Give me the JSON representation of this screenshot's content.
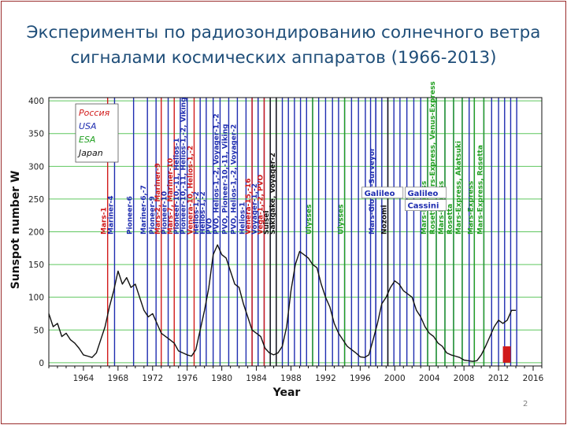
{
  "slide": {
    "title_line1": "Эксперименты по радиозондированию солнечного ветра",
    "title_line2": "сигналами космических аппаратов (1966-2013)",
    "page_number": "2"
  },
  "colors": {
    "ussr": "#d11a1a",
    "usa": "#1f2db0",
    "esa": "#22a022",
    "japan": "#111111",
    "grid": "#5fc75f",
    "title": "#1f4e79"
  },
  "chart_data": {
    "type": "line",
    "title": "",
    "xlabel": "Year",
    "ylabel": "Sunspot number W",
    "xlim": [
      1960,
      2017
    ],
    "ylim": [
      -5,
      405
    ],
    "xticks": [
      1964,
      1968,
      1972,
      1976,
      1980,
      1984,
      1988,
      1992,
      1996,
      2000,
      2004,
      2008,
      2012,
      2016
    ],
    "yticks": [
      0,
      50,
      100,
      150,
      200,
      250,
      300,
      350,
      400
    ],
    "grid": "horizontal",
    "legend": {
      "position": "top-left",
      "entries": [
        {
          "label": "Россия",
          "color_key": "ussr"
        },
        {
          "label": "USA",
          "color_key": "usa"
        },
        {
          "label": "ESA",
          "color_key": "esa"
        },
        {
          "label": "Japan",
          "color_key": "japan"
        }
      ]
    },
    "series": [
      {
        "x": [
          1960.0,
          1960.5,
          1961.0,
          1961.5,
          1962.0,
          1962.5,
          1963.0,
          1963.5,
          1964.0,
          1964.5,
          1965.0,
          1965.5,
          1966.0,
          1966.5,
          1967.0,
          1967.5,
          1968.0,
          1968.5,
          1969.0,
          1969.5,
          1970.0,
          1970.5,
          1971.0,
          1971.5,
          1972.0,
          1972.5,
          1973.0,
          1973.5,
          1974.0,
          1974.5,
          1975.0,
          1975.5,
          1976.0,
          1976.5,
          1977.0,
          1977.5,
          1978.0,
          1978.5,
          1979.0,
          1979.5,
          1980.0,
          1980.5,
          1981.0,
          1981.5,
          1982.0,
          1982.5,
          1983.0,
          1983.5,
          1984.0,
          1984.5,
          1985.0,
          1985.5,
          1986.0,
          1986.5,
          1987.0,
          1987.5,
          1988.0,
          1988.5,
          1989.0,
          1989.5,
          1990.0,
          1990.5,
          1991.0,
          1991.5,
          1992.0,
          1992.5,
          1993.0,
          1993.5,
          1994.0,
          1994.5,
          1995.0,
          1995.5,
          1996.0,
          1996.5,
          1997.0,
          1997.5,
          1998.0,
          1998.5,
          1999.0,
          1999.5,
          2000.0,
          2000.5,
          2001.0,
          2001.5,
          2002.0,
          2002.5,
          2003.0,
          2003.5,
          2004.0,
          2004.5,
          2005.0,
          2005.5,
          2006.0,
          2006.5,
          2007.0,
          2007.5,
          2008.0,
          2008.5,
          2009.0,
          2009.5,
          2010.0,
          2010.5,
          2011.0,
          2011.5,
          2012.0,
          2012.5,
          2013.0,
          2013.5,
          2014.0
        ],
        "values": [
          75,
          55,
          60,
          40,
          45,
          35,
          30,
          22,
          12,
          10,
          8,
          15,
          35,
          55,
          85,
          110,
          140,
          120,
          130,
          115,
          120,
          100,
          80,
          70,
          75,
          60,
          45,
          40,
          35,
          30,
          18,
          15,
          12,
          10,
          20,
          50,
          80,
          115,
          165,
          180,
          165,
          160,
          140,
          120,
          115,
          90,
          70,
          50,
          45,
          40,
          22,
          15,
          12,
          15,
          25,
          55,
          110,
          150,
          170,
          165,
          160,
          150,
          145,
          120,
          100,
          85,
          60,
          45,
          35,
          25,
          20,
          15,
          9,
          8,
          12,
          35,
          60,
          90,
          100,
          115,
          125,
          120,
          110,
          105,
          100,
          80,
          70,
          55,
          45,
          40,
          30,
          25,
          15,
          12,
          10,
          8,
          4,
          3,
          2,
          3,
          12,
          25,
          40,
          55,
          65,
          60,
          65,
          80,
          80
        ]
      }
    ],
    "spacecraft": [
      {
        "year": 1966.8,
        "label": "Mars-1",
        "agency": "ussr"
      },
      {
        "year": 1967.6,
        "label": "Mariner-4",
        "agency": "usa"
      },
      {
        "year": 1969.8,
        "label": "Pioneer-6",
        "agency": "usa"
      },
      {
        "year": 1971.4,
        "label": "Mariner-6,-7",
        "agency": "usa"
      },
      {
        "year": 1972.4,
        "label": "Pioneer-9",
        "agency": "usa"
      },
      {
        "year": 1973.0,
        "label": "Mars-2, Mariner-9",
        "agency": "ussr"
      },
      {
        "year": 1973.8,
        "label": "Pioneer-10",
        "agency": "usa"
      },
      {
        "year": 1974.5,
        "label": "Mars-7, Mariner-10",
        "agency": "ussr"
      },
      {
        "year": 1975.2,
        "label": "Pioneer-10,-11, Helios-1",
        "agency": "usa"
      },
      {
        "year": 1976.0,
        "label": "Pioneer-10,-11, Helios-1,-2, Viking",
        "agency": "usa"
      },
      {
        "year": 1976.8,
        "label": "Venera-10, Helios-1,-2",
        "agency": "ussr"
      },
      {
        "year": 1977.5,
        "label": "Helios-1,-2",
        "agency": "usa"
      },
      {
        "year": 1978.2,
        "label": "Helios-1,-2",
        "agency": "usa"
      },
      {
        "year": 1979.0,
        "label": "PVO",
        "agency": "usa"
      },
      {
        "year": 1979.8,
        "label": "PVO, Helios-1,-2, Voyager-1,-2",
        "agency": "usa"
      },
      {
        "year": 1980.8,
        "label": "PVO, Pioneer-10,-11, Viking",
        "agency": "usa"
      },
      {
        "year": 1981.8,
        "label": "PVO, Helios-1,-2, Voyager-2",
        "agency": "usa"
      },
      {
        "year": 1982.8,
        "label": "Helios-1",
        "agency": "usa"
      },
      {
        "year": 1983.5,
        "label": "Venera-15,-16",
        "agency": "ussr"
      },
      {
        "year": 1984.2,
        "label": "Voyager-1,-2",
        "agency": "usa"
      },
      {
        "year": 1984.9,
        "label": "Vega-1,-2, PVO",
        "agency": "ussr"
      },
      {
        "year": 1985.6,
        "label": "Suisei",
        "agency": "japan"
      },
      {
        "year": 1986.3,
        "label": "Sakigake, Voyager-2",
        "agency": "japan"
      },
      {
        "year": 1990.5,
        "label": "Ulysses",
        "agency": "esa"
      },
      {
        "year": 1994.2,
        "label": "Ulysses",
        "agency": "esa"
      },
      {
        "year": 1997.8,
        "label": "Mars-Global-Surveyor",
        "agency": "usa"
      },
      {
        "year": 1999.2,
        "label": "Nozomi",
        "agency": "japan"
      },
      {
        "year": 2003.8,
        "label": "Mars-Express",
        "agency": "esa"
      },
      {
        "year": 2004.8,
        "label": "Rosetta, Mars-Express, Venus-Express",
        "agency": "esa"
      },
      {
        "year": 2005.8,
        "label": "Mars-Express",
        "agency": "esa"
      },
      {
        "year": 2006.8,
        "label": "Rosetta",
        "agency": "esa"
      },
      {
        "year": 2007.8,
        "label": "Mars-Express, Akatsuki",
        "agency": "esa"
      },
      {
        "year": 2009.2,
        "label": "Mars-Express",
        "agency": "esa"
      },
      {
        "year": 2010.3,
        "label": "Mars-Express, Rosetta",
        "agency": "esa"
      }
    ],
    "box_labels": [
      {
        "label": "Galileo",
        "agency": "usa",
        "year": 1996.2,
        "value": 255
      },
      {
        "label": "Galileo",
        "agency": "usa",
        "year": 2001.2,
        "value": 255
      },
      {
        "label": "Cassini",
        "agency": "usa",
        "year": 2001.2,
        "value": 236
      }
    ],
    "highlight": {
      "x_start": 2012.5,
      "x_end": 2013.4,
      "y_start": 0,
      "y_end": 25,
      "color_key": "ussr"
    },
    "extra_lines": [
      1983.5,
      1984.2,
      1984.9,
      1985.6,
      1986.3,
      1987.0,
      1987.7,
      1988.4,
      1989.1,
      1989.8,
      1990.5,
      1991.2,
      1992.0,
      1992.8,
      1993.5,
      1994.2,
      1995.0,
      1995.8,
      1996.6,
      1997.2,
      1997.8,
      1998.5,
      1999.2,
      1999.9,
      2000.6,
      2001.4,
      2002.2,
      2003.0,
      2003.8,
      2004.8,
      2005.8,
      2006.8,
      2007.8,
      2008.6,
      2009.2,
      2010.3,
      2011.2,
      2012.0,
      2012.7,
      2013.4,
      2014.1
    ],
    "extra_lines_color_key": "usa"
  }
}
